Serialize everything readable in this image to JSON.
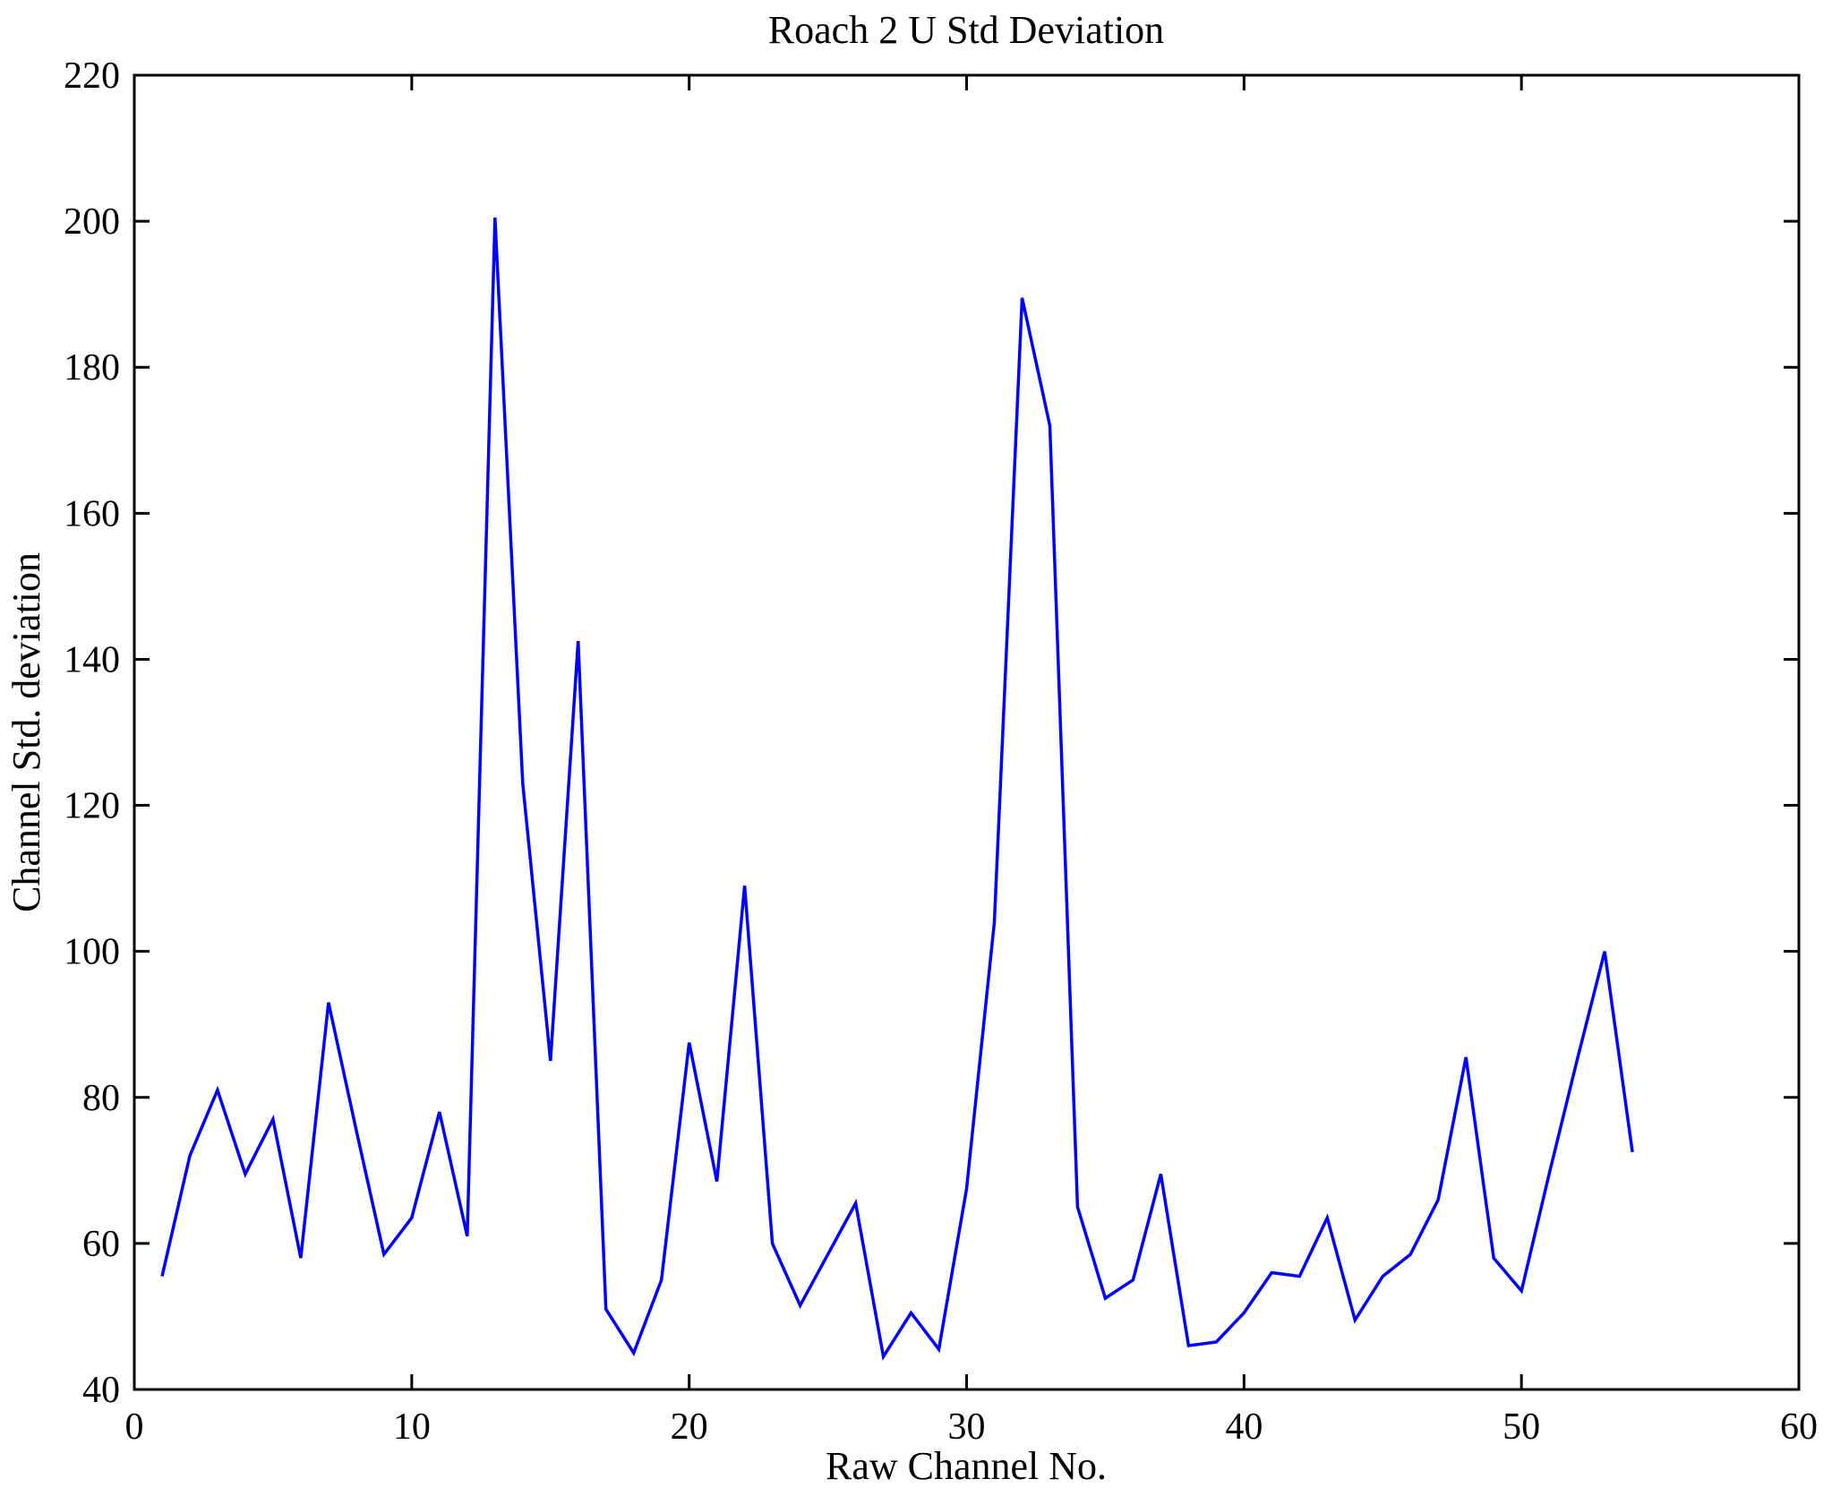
{
  "chart_data": {
    "type": "line",
    "title": "Roach 2 U Std Deviation",
    "xlabel": "Raw Channel No.",
    "ylabel": "Channel Std. deviation",
    "xlim": [
      0,
      60
    ],
    "ylim": [
      40,
      220
    ],
    "x_ticks": [
      0,
      10,
      20,
      30,
      40,
      50,
      60
    ],
    "y_ticks": [
      40,
      60,
      80,
      100,
      120,
      140,
      160,
      180,
      200,
      220
    ],
    "grid": false,
    "legend": "none",
    "line_color": "#0000ff",
    "frame_color": "#000000",
    "x": [
      1,
      2,
      3,
      4,
      5,
      6,
      7,
      8,
      9,
      10,
      11,
      12,
      13,
      14,
      15,
      16,
      17,
      18,
      19,
      20,
      21,
      22,
      23,
      24,
      25,
      26,
      27,
      28,
      29,
      30,
      31,
      32,
      33,
      34,
      35,
      36,
      37,
      38,
      39,
      40,
      41,
      42,
      43,
      44,
      45,
      46,
      47,
      48,
      49,
      50,
      51,
      52,
      53,
      54
    ],
    "values": [
      55.5,
      72,
      81,
      69.5,
      77,
      58,
      93,
      75.5,
      58.5,
      63.5,
      78,
      61,
      200.5,
      123,
      85,
      142.5,
      51,
      45,
      55,
      87.5,
      68.5,
      109,
      60,
      51.5,
      58.5,
      65.5,
      44.5,
      50.5,
      45.5,
      67.5,
      104,
      189.5,
      172,
      65,
      52.5,
      55,
      69.5,
      46,
      46.5,
      50.5,
      56,
      55.5,
      63.5,
      49.5,
      55.5,
      58.5,
      66,
      85.5,
      58,
      53.5,
      69.5,
      85,
      100,
      72.5
    ]
  }
}
